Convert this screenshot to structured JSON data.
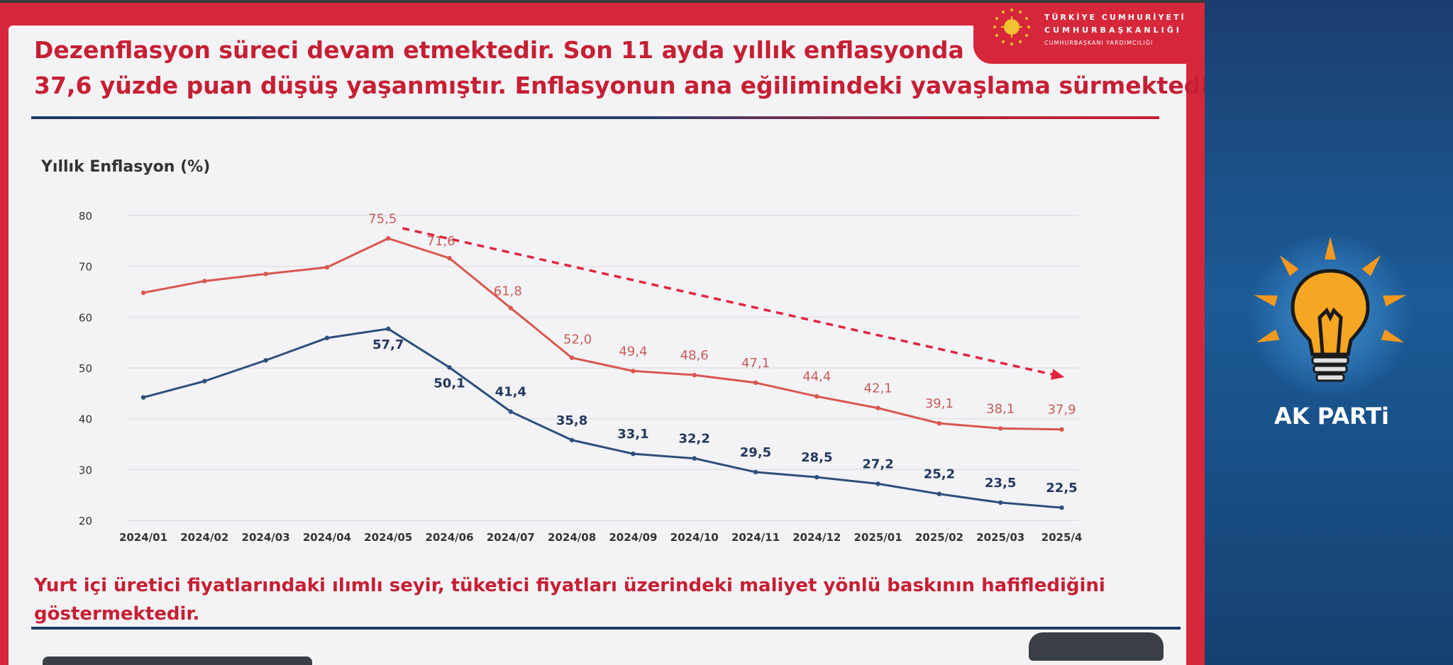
{
  "header": {
    "org_line1": "TÜRKİYE CUMHURİYETİ",
    "org_line2": "CUMHURBAŞKANLIĞI",
    "org_line3": "CUMHURBAŞKANI YARDIMCILIĞI"
  },
  "slide": {
    "title_line1": "Dezenflasyon süreci devam etmektedir. Son 11 ayda yıllık enflasyonda",
    "title_line2": "37,6 yüzde puan düşüş yaşanmıştır. Enflasyonun ana eğilimindeki yavaşlama sürmektedir.",
    "footnote": "Yurt içi üretici fiyatlarındaki ılımlı seyir, tüketici fiyatları üzerindeki maliyet yönlü baskının hafiflediğini göstermektedir."
  },
  "side_panel": {
    "party_name": "AK PARTi"
  },
  "colors": {
    "red_series": "#d9574f",
    "blue_series": "#2d4f7c",
    "trend_arrow": "#e3243f",
    "title_red": "#c61f33",
    "value_label_red": "#c75b56",
    "value_label_blue": "#23385e"
  },
  "chart_data": {
    "type": "line",
    "title": "",
    "ylabel": "Yıllık Enflasyon (%)",
    "xlabel": "",
    "ylim": [
      20,
      80
    ],
    "yticks": [
      20,
      30,
      40,
      50,
      60,
      70,
      80
    ],
    "grid": true,
    "legend": "none",
    "categories": [
      "2024/01",
      "2024/02",
      "2024/03",
      "2024/04",
      "2024/05",
      "2024/06",
      "2024/07",
      "2024/08",
      "2024/09",
      "2024/10",
      "2024/11",
      "2024/12",
      "2025/01",
      "2025/02",
      "2025/03",
      "2025/4"
    ],
    "series": [
      {
        "values": [
          64.8,
          67.1,
          68.5,
          69.8,
          75.5,
          71.6,
          61.8,
          52.0,
          49.4,
          48.6,
          47.1,
          44.4,
          42.1,
          39.1,
          38.1,
          37.9
        ],
        "data_labels": [
          "",
          "",
          "",
          "",
          "75,5",
          "71,6",
          "61,8",
          "52,0",
          "49,4",
          "48,6",
          "47,1",
          "44,4",
          "42,1",
          "39,1",
          "38,1",
          "37,9"
        ]
      },
      {
        "values": [
          44.2,
          47.4,
          51.5,
          55.9,
          57.7,
          50.1,
          41.4,
          35.8,
          33.1,
          32.2,
          29.5,
          28.5,
          27.2,
          25.2,
          23.5,
          22.5
        ],
        "data_labels": [
          "",
          "",
          "",
          "",
          "57,7",
          "50,1",
          "41,4",
          "35,8",
          "33,1",
          "32,2",
          "29,5",
          "28,5",
          "27,2",
          "25,2",
          "23,5",
          "22,5"
        ]
      }
    ],
    "annotations": [
      {
        "type": "trend-arrow",
        "from_category": "2024/05",
        "from_value": 77.5,
        "to_category": "2025/4",
        "to_value": 48.5
      }
    ]
  }
}
